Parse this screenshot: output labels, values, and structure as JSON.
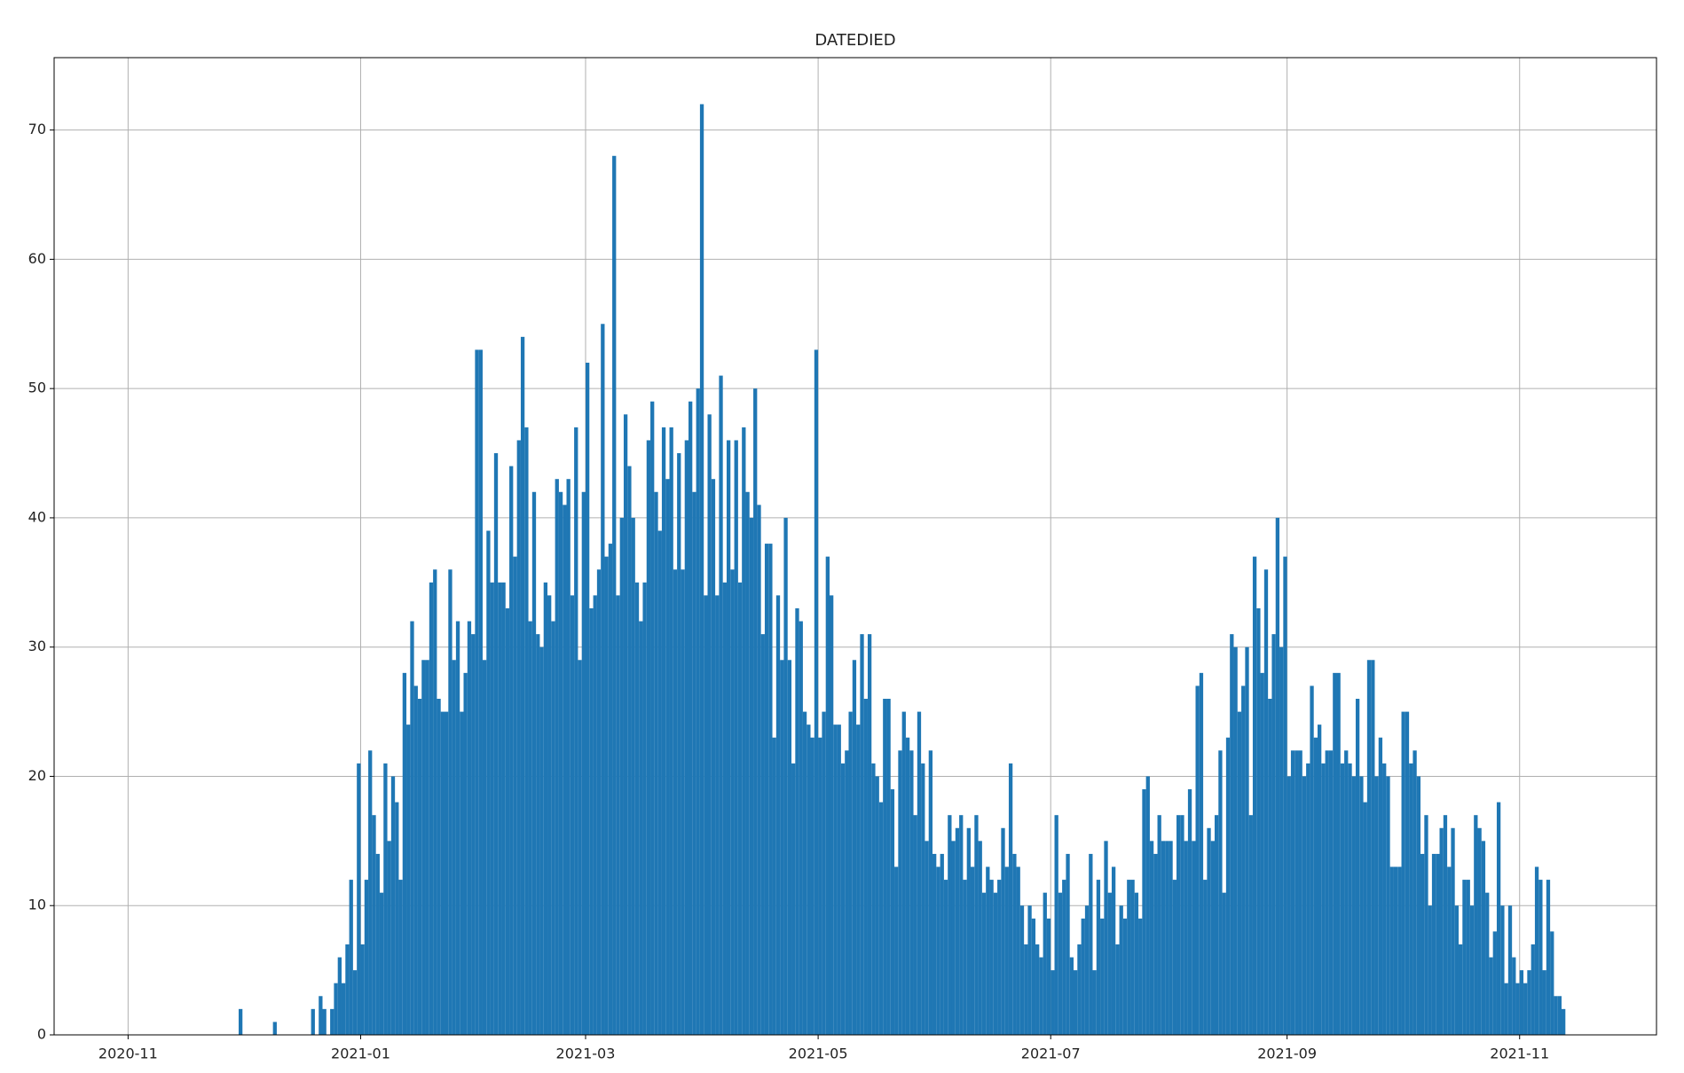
{
  "chart_data": {
    "type": "histogram",
    "title": "DATEDIED",
    "color": "#1f77b4",
    "grid": true,
    "xlim": [
      18547.6,
      18967.9
    ],
    "ylim": [
      0,
      75.6
    ],
    "xticks": [
      {
        "value": 18567,
        "label": "2020-11"
      },
      {
        "value": 18628,
        "label": "2021-01"
      },
      {
        "value": 18687,
        "label": "2021-03"
      },
      {
        "value": 18748,
        "label": "2021-05"
      },
      {
        "value": 18809,
        "label": "2021-07"
      },
      {
        "value": 18871,
        "label": "2021-09"
      },
      {
        "value": 18932,
        "label": "2021-11"
      }
    ],
    "yticks": [
      0,
      10,
      20,
      30,
      40,
      50,
      60,
      70
    ],
    "bins": [
      18596,
      18597,
      18598,
      18599,
      18600,
      18601,
      18602,
      18603,
      18604,
      18605,
      18606,
      18607,
      18608,
      18609,
      18610,
      18611,
      18612,
      18613,
      18614,
      18615,
      18616,
      18617,
      18618,
      18619,
      18620,
      18621,
      18622,
      18623,
      18624,
      18625,
      18626,
      18627,
      18628,
      18629,
      18630,
      18631,
      18632,
      18633,
      18634,
      18635,
      18636,
      18637,
      18638,
      18639,
      18640,
      18641,
      18642,
      18643,
      18644,
      18645,
      18646,
      18647,
      18648,
      18649,
      18650,
      18651,
      18652,
      18653,
      18654,
      18655,
      18656,
      18657,
      18658,
      18659,
      18660,
      18661,
      18662,
      18663,
      18664,
      18665,
      18666,
      18667,
      18668,
      18669,
      18670,
      18671,
      18672,
      18673,
      18674,
      18675,
      18676,
      18677,
      18678,
      18679,
      18680,
      18681,
      18682,
      18683,
      18684,
      18685,
      18686,
      18687,
      18688,
      18689,
      18690,
      18691,
      18692,
      18693,
      18694,
      18695,
      18696,
      18697,
      18698,
      18699,
      18700,
      18701,
      18702,
      18703,
      18704,
      18705,
      18706,
      18707,
      18708,
      18709,
      18710,
      18711,
      18712,
      18713,
      18714,
      18715,
      18716,
      18717,
      18718,
      18719,
      18720,
      18721,
      18722,
      18723,
      18724,
      18725,
      18726,
      18727,
      18728,
      18729,
      18730,
      18731,
      18732,
      18733,
      18734,
      18735,
      18736,
      18737,
      18738,
      18739,
      18740,
      18741,
      18742,
      18743,
      18744,
      18745,
      18746,
      18747,
      18748,
      18749,
      18750,
      18751,
      18752,
      18753,
      18754,
      18755,
      18756,
      18757,
      18758,
      18759,
      18760,
      18761,
      18762,
      18763,
      18764,
      18765,
      18766,
      18767,
      18768,
      18769,
      18770,
      18771,
      18772,
      18773,
      18774,
      18775,
      18776,
      18777,
      18778,
      18779,
      18780,
      18781,
      18782,
      18783,
      18784,
      18785,
      18786,
      18787,
      18788,
      18789,
      18790,
      18791,
      18792,
      18793,
      18794,
      18795,
      18796,
      18797,
      18798,
      18799,
      18800,
      18801,
      18802,
      18803,
      18804,
      18805,
      18806,
      18807,
      18808,
      18809,
      18810,
      18811,
      18812,
      18813,
      18814,
      18815,
      18816,
      18817,
      18818,
      18819,
      18820,
      18821,
      18822,
      18823,
      18824,
      18825,
      18826,
      18827,
      18828,
      18829,
      18830,
      18831,
      18832,
      18833,
      18834,
      18835,
      18836,
      18837,
      18838,
      18839,
      18840,
      18841,
      18842,
      18843,
      18844,
      18845,
      18846,
      18847,
      18848,
      18849,
      18850,
      18851,
      18852,
      18853,
      18854,
      18855,
      18856,
      18857,
      18858,
      18859,
      18860,
      18861,
      18862,
      18863,
      18864,
      18865,
      18866,
      18867,
      18868,
      18869,
      18870,
      18871,
      18872,
      18873,
      18874,
      18875,
      18876,
      18877,
      18878,
      18879,
      18880,
      18881,
      18882,
      18883,
      18884,
      18885,
      18886,
      18887,
      18888,
      18889,
      18890,
      18891,
      18892,
      18893,
      18894,
      18895,
      18896,
      18897,
      18898,
      18899,
      18900,
      18901,
      18902,
      18903,
      18904,
      18905,
      18906,
      18907,
      18908,
      18909,
      18910,
      18911,
      18912,
      18913,
      18914,
      18915,
      18916,
      18917,
      18918,
      18919,
      18920,
      18921,
      18922,
      18923,
      18924,
      18925,
      18926,
      18927,
      18928,
      18929,
      18930,
      18931,
      18932,
      18933,
      18934,
      18935,
      18936,
      18937,
      18938,
      18939,
      18940,
      18941,
      18942,
      18943,
      18944
    ],
    "values": [
      2,
      0,
      0,
      0,
      0,
      0,
      0,
      0,
      0,
      1,
      0,
      0,
      0,
      0,
      0,
      0,
      0,
      0,
      0,
      2,
      0,
      3,
      2,
      0,
      2,
      4,
      6,
      4,
      7,
      12,
      5,
      21,
      7,
      12,
      22,
      17,
      14,
      11,
      21,
      15,
      20,
      18,
      12,
      28,
      24,
      32,
      27,
      26,
      29,
      29,
      35,
      36,
      26,
      25,
      25,
      36,
      29,
      32,
      25,
      28,
      32,
      31,
      53,
      53,
      29,
      39,
      35,
      45,
      35,
      35,
      33,
      44,
      37,
      46,
      54,
      47,
      32,
      42,
      31,
      30,
      35,
      34,
      32,
      43,
      42,
      41,
      43,
      34,
      47,
      29,
      42,
      52,
      33,
      34,
      36,
      55,
      37,
      38,
      68,
      34,
      40,
      48,
      44,
      40,
      35,
      32,
      35,
      46,
      49,
      42,
      39,
      47,
      43,
      47,
      36,
      45,
      36,
      46,
      49,
      42,
      50,
      72,
      34,
      48,
      43,
      34,
      51,
      35,
      46,
      36,
      46,
      35,
      47,
      42,
      40,
      50,
      41,
      31,
      38,
      38,
      23,
      34,
      29,
      40,
      29,
      21,
      33,
      32,
      25,
      24,
      23,
      53,
      23,
      25,
      37,
      34,
      24,
      24,
      21,
      22,
      25,
      29,
      24,
      31,
      26,
      31,
      21,
      20,
      18,
      26,
      26,
      19,
      13,
      22,
      25,
      23,
      22,
      17,
      25,
      21,
      15,
      22,
      14,
      13,
      14,
      12,
      17,
      15,
      16,
      17,
      12,
      16,
      13,
      17,
      15,
      11,
      13,
      12,
      11,
      12,
      16,
      13,
      21,
      14,
      13,
      10,
      7,
      10,
      9,
      7,
      6,
      11,
      9,
      5,
      17,
      11,
      12,
      14,
      6,
      5,
      7,
      9,
      10,
      14,
      5,
      12,
      9,
      15,
      11,
      13,
      7,
      10,
      9,
      12,
      12,
      11,
      9,
      19,
      20,
      15,
      14,
      17,
      15,
      15,
      15,
      12,
      17,
      17,
      15,
      19,
      15,
      27,
      28,
      12,
      16,
      15,
      17,
      22,
      11,
      23,
      31,
      30,
      25,
      27,
      30,
      17,
      37,
      33,
      28,
      36,
      26,
      31,
      40,
      30,
      37,
      20,
      22,
      22,
      22,
      20,
      21,
      27,
      23,
      24,
      21,
      22,
      22,
      28,
      28,
      21,
      22,
      21,
      20,
      26,
      20,
      18,
      29,
      29,
      20,
      23,
      21,
      20,
      13,
      13,
      13,
      25,
      25,
      21,
      22,
      20,
      14,
      17,
      10,
      14,
      14,
      16,
      17,
      13,
      16,
      10,
      7,
      12,
      12,
      10,
      17,
      16,
      15,
      11,
      6,
      8,
      18,
      10,
      4,
      10,
      6,
      4,
      5,
      4,
      5,
      7,
      13,
      12,
      5,
      12,
      8,
      3,
      3,
      2
    ]
  }
}
